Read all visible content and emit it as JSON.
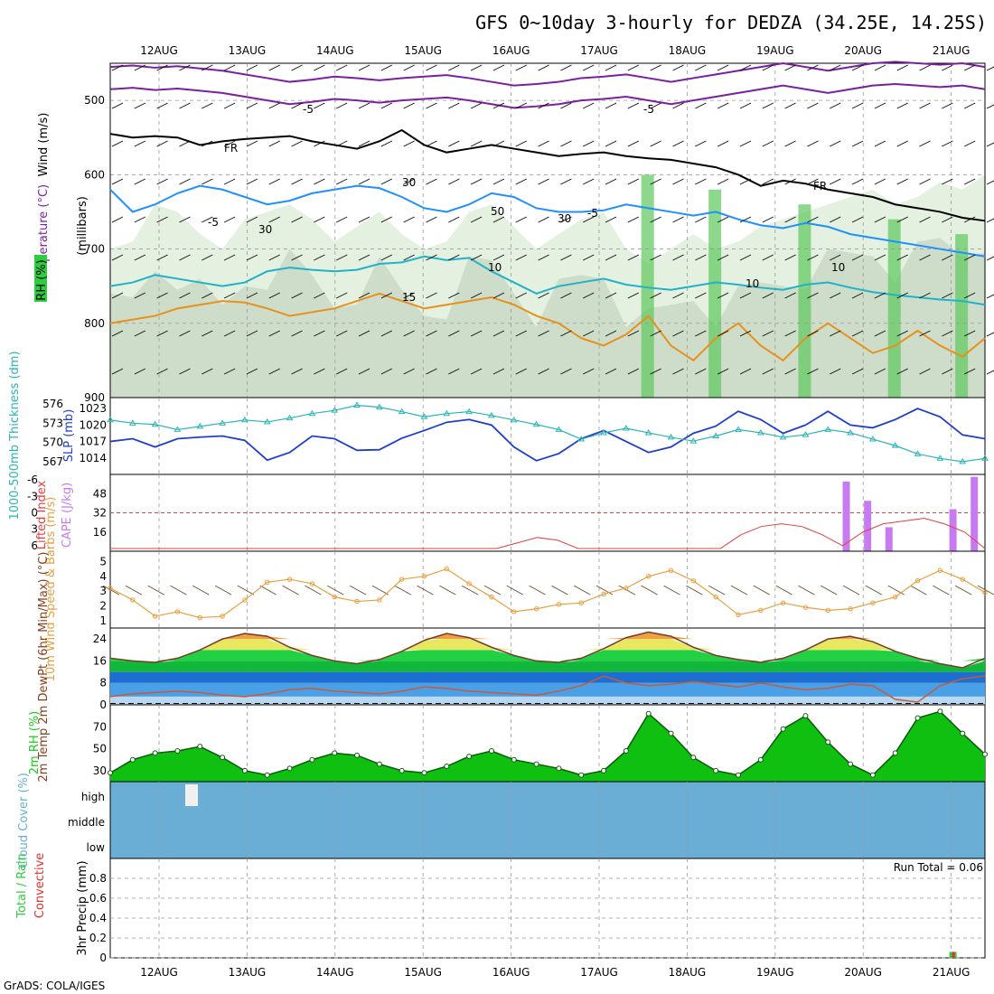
{
  "title": "GFS 0~10day 3-hourly for DEDZA (34.25E, 14.25S)",
  "footer": "GrADS: COLA/IGES",
  "colors": {
    "purple": "#7b1fa2",
    "black": "#000000",
    "cyan_blue": "#1e90ff",
    "teal": "#20b2c8",
    "orange": "#e8901c",
    "magenta": "#d0107a",
    "slp_blue": "#1f3fc8",
    "thick_teal": "#2ab5b5",
    "cape": "#c77bf0",
    "li": "#e04040",
    "wind": "#e8a040",
    "rh_green": "#1ec81e",
    "cloud": "#6aaed6",
    "precip_green": "#2ecc40",
    "precip_red": "#e03030"
  },
  "chart_data": [
    {
      "type": "line",
      "panel": "upper-air",
      "title": "Wind (m/s) / Temperature (°C) / RH (%)",
      "ylabel_wind": "Wind (m/s)",
      "ylabel_temp": "Temperature (°C)",
      "ylabel_rh": "RH (%)",
      "ylabel_press": "(millibars)",
      "yticks": [
        500,
        600,
        700,
        800,
        900
      ],
      "ylim": [
        450,
        900
      ],
      "xtick_labels": [
        "12AUG",
        "13AUG",
        "14AUG",
        "15AUG",
        "16AUG",
        "17AUG",
        "18AUG",
        "19AUG",
        "20AUG",
        "21AUG"
      ],
      "contour_labels": [
        "-5",
        "-5",
        "FR",
        "FR",
        "-5",
        "-5",
        "10",
        "10",
        "15",
        "10",
        "30",
        "30",
        "30",
        "50"
      ],
      "series": [
        {
          "name": "T -5C level",
          "values": [
            485,
            483,
            486,
            484,
            487,
            490,
            495,
            500,
            505,
            502,
            498,
            500,
            503,
            500,
            498,
            496,
            500,
            505,
            510,
            508,
            505,
            500,
            498,
            495,
            500,
            505,
            500,
            495,
            490,
            485,
            480,
            485,
            490,
            485,
            480,
            478,
            480,
            482,
            480,
            485
          ]
        },
        {
          "name": "Freezing level",
          "values": [
            545,
            550,
            548,
            550,
            560,
            555,
            552,
            550,
            548,
            555,
            560,
            565,
            555,
            540,
            560,
            570,
            565,
            560,
            565,
            570,
            575,
            572,
            570,
            575,
            578,
            580,
            585,
            590,
            600,
            615,
            608,
            612,
            620,
            625,
            630,
            640,
            645,
            650,
            658,
            662
          ]
        },
        {
          "name": "T 5C level",
          "values": [
            620,
            650,
            640,
            625,
            615,
            620,
            630,
            640,
            635,
            625,
            620,
            615,
            618,
            630,
            645,
            650,
            640,
            625,
            630,
            645,
            650,
            650,
            648,
            640,
            645,
            650,
            655,
            650,
            660,
            668,
            672,
            665,
            670,
            680,
            685,
            690,
            695,
            700,
            705,
            710
          ]
        },
        {
          "name": "T 10C level",
          "values": [
            750,
            745,
            735,
            740,
            745,
            750,
            745,
            730,
            725,
            728,
            730,
            728,
            720,
            718,
            710,
            715,
            712,
            730,
            745,
            760,
            750,
            745,
            740,
            748,
            752,
            755,
            750,
            745,
            748,
            752,
            755,
            748,
            745,
            752,
            758,
            762,
            765,
            768,
            770,
            775
          ]
        }
      ]
    },
    {
      "type": "line",
      "panel": "slp-thickness",
      "ylabel_thick": "1000-500mb Thickness (dm)",
      "ylabel_slp": "SLP (mb)",
      "yticks_thick": [
        567,
        570,
        573,
        576
      ],
      "yticks_slp": [
        1014,
        1017,
        1020,
        1023
      ],
      "series": [
        {
          "name": "SLP",
          "values": [
            1017,
            1017.5,
            1016,
            1017.5,
            1017.8,
            1018,
            1017.2,
            1013.6,
            1015,
            1018,
            1017.5,
            1015.4,
            1015.5,
            1017.6,
            1019,
            1020.5,
            1021,
            1020,
            1016,
            1013.5,
            1014.8,
            1017.5,
            1019,
            1017,
            1015,
            1016,
            1018.5,
            1019.8,
            1022.5,
            1021,
            1018.5,
            1020,
            1022.5,
            1020,
            1019.5,
            1021,
            1023,
            1021.5,
            1018.2,
            1017.5
          ]
        },
        {
          "name": "Thickness",
          "values": [
            573.5,
            573,
            572.8,
            572,
            572.5,
            573,
            573.5,
            573.2,
            573.8,
            574.5,
            575,
            575.8,
            575.5,
            574.8,
            574,
            574.5,
            574.8,
            574.2,
            573.5,
            572.8,
            572,
            570.5,
            571.5,
            572.2,
            571.5,
            570.8,
            570.2,
            571,
            572,
            571.5,
            570.8,
            571.2,
            572,
            571.5,
            570.5,
            569.5,
            568.2,
            567.5,
            567,
            567.5
          ]
        }
      ]
    },
    {
      "type": "bar",
      "panel": "cape-li",
      "ylabel_li": "Lifted Index",
      "ylabel_cape": "CAPE (J/kg)",
      "yticks_li": [
        -6,
        -3,
        0,
        3,
        6
      ],
      "yticks_cape": [
        16,
        32,
        48
      ],
      "cape_bars": [
        {
          "time_index": 34,
          "value": 58
        },
        {
          "time_index": 35,
          "value": 42
        },
        {
          "time_index": 36,
          "value": 20
        },
        {
          "time_index": 39,
          "value": 35
        },
        {
          "time_index": 40,
          "value": 62
        }
      ],
      "lifted_index": [
        6.5,
        6.5,
        6.5,
        6.5,
        6.5,
        6.5,
        6.5,
        6.5,
        6.5,
        6.5,
        6.5,
        6.5,
        6.5,
        6.5,
        6.5,
        6.5,
        6.5,
        6.5,
        6.5,
        6.5,
        5.5,
        4.5,
        5.0,
        6.5,
        6.5,
        6.5,
        6.5,
        6.5,
        6.5,
        6.5,
        6.5,
        4.0,
        2.5,
        2.0,
        2.5,
        4.0,
        6.0,
        3.5,
        2.0,
        1.5,
        1.0,
        2.0,
        3.5,
        6.5
      ]
    },
    {
      "type": "line",
      "panel": "wind10m",
      "ylabel": "10m Wind Speed & Barbs (m/s)",
      "yticks": [
        1,
        2,
        3,
        4,
        5
      ],
      "values": [
        3.2,
        2.4,
        1.3,
        1.6,
        1.2,
        1.3,
        2.4,
        3.6,
        3.8,
        3.5,
        2.6,
        2.3,
        2.4,
        3.8,
        4.0,
        4.5,
        3.5,
        2.6,
        1.6,
        1.8,
        2.1,
        2.2,
        2.8,
        3.2,
        4.0,
        4.4,
        3.7,
        2.6,
        1.4,
        1.7,
        2.2,
        1.9,
        1.7,
        1.8,
        2.2,
        2.6,
        3.7,
        4.4,
        3.8,
        2.9
      ]
    },
    {
      "type": "area",
      "panel": "temp2m",
      "ylabel": "2m Temp 2m DewPt (6hr Min/Max) (°C)",
      "yticks": [
        0,
        8,
        16,
        24
      ],
      "temp": [
        17,
        16,
        15.5,
        17,
        20,
        24,
        26,
        25,
        21,
        18,
        16,
        15,
        16.5,
        19.5,
        23.5,
        26,
        24.5,
        21,
        18,
        16,
        15.5,
        17,
        20.5,
        24.5,
        26.5,
        25,
        21,
        18,
        16.5,
        15.5,
        17,
        20,
        24,
        25,
        23,
        19.5,
        17,
        15,
        13.5,
        17
      ],
      "dewpt": [
        3,
        4,
        4.5,
        5,
        4.5,
        3.5,
        3,
        4,
        5.5,
        6,
        5,
        4.5,
        4,
        5,
        6.5,
        6,
        5,
        4.5,
        4,
        3.5,
        5,
        7,
        10.5,
        8,
        7,
        7.5,
        8.5,
        7.5,
        6.5,
        8,
        6.5,
        5.5,
        6,
        7.5,
        7,
        2,
        1,
        7,
        9.5,
        10.5
      ]
    },
    {
      "type": "area",
      "panel": "rh2m",
      "ylabel": "2m RH (%)",
      "yticks": [
        30,
        50,
        70
      ],
      "values": [
        28,
        40,
        46,
        48,
        52,
        42,
        30,
        26,
        32,
        40,
        46,
        44,
        36,
        30,
        28,
        34,
        43,
        48,
        40,
        36,
        32,
        26,
        30,
        48,
        82,
        64,
        42,
        30,
        26,
        40,
        68,
        80,
        56,
        36,
        26,
        46,
        78,
        84,
        64,
        45
      ]
    },
    {
      "type": "heatmap",
      "panel": "cloud",
      "ylabel": "Cloud Cover (%)",
      "levels": [
        "high",
        "middle",
        "low"
      ],
      "cloud_ylabel": "Cloud Cover (%)"
    },
    {
      "type": "bar",
      "panel": "precip",
      "ylabel": "3hr Precip (mm)",
      "legend_total": "Total / Rain",
      "legend_conv": "Convective",
      "run_total": "Run Total = 0.06",
      "yticks": [
        0,
        0.2,
        0.4,
        0.6,
        0.8
      ],
      "bars": [
        {
          "time_index": 39,
          "value": 0.06
        }
      ]
    }
  ]
}
